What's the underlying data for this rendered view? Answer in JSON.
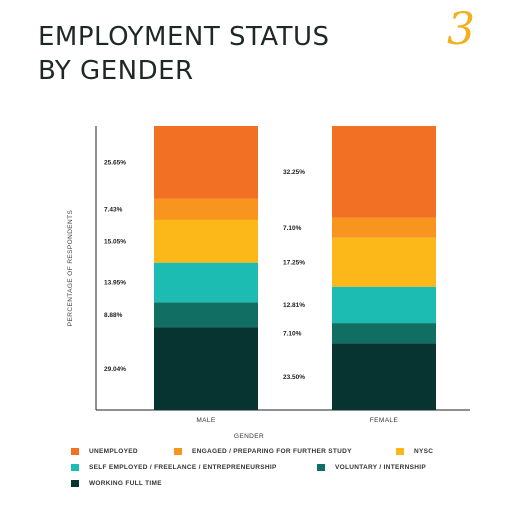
{
  "page": {
    "title_lines": [
      "EMPLOYMENT STATUS",
      "BY GENDER"
    ],
    "page_number": "3"
  },
  "chart_data": {
    "type": "bar",
    "stacked": true,
    "categories": [
      "MALE",
      "FEMALE"
    ],
    "xlabel": "GENDER",
    "ylabel": "PERCENTAGE OF RESPONDENTS",
    "ylim": [
      0,
      100
    ],
    "grid": false,
    "legend_position": "bottom",
    "series": [
      {
        "name": "WORKING FULL TIME",
        "color": "#073331",
        "values": [
          29.04,
          23.5
        ],
        "labels": [
          "29.04%",
          "23.50%"
        ]
      },
      {
        "name": "VOLUNTARY / INTERNSHIP",
        "color": "#106e62",
        "values": [
          8.88,
          7.1
        ],
        "labels": [
          "8.88%",
          "7.10%"
        ]
      },
      {
        "name": "SELF EMPLOYED / FREELANCE / ENTREPRENEURSHIP",
        "color": "#1dbcb3",
        "values": [
          13.95,
          12.81
        ],
        "labels": [
          "13.95%",
          "12.81%"
        ]
      },
      {
        "name": "NYSC",
        "color": "#fcb718",
        "values": [
          15.05,
          17.25
        ],
        "labels": [
          "15.05%",
          "17.25%"
        ]
      },
      {
        "name": "ENGAGED / PREPARING FOR FURTHER STUDY",
        "color": "#f7951f",
        "values": [
          7.43,
          7.1
        ],
        "labels": [
          "7.43%",
          "7.10%"
        ]
      },
      {
        "name": "UNEMPLOYED",
        "color": "#f27024",
        "values": [
          25.65,
          32.25
        ],
        "labels": [
          "25.65%",
          "32.25%"
        ]
      }
    ]
  }
}
